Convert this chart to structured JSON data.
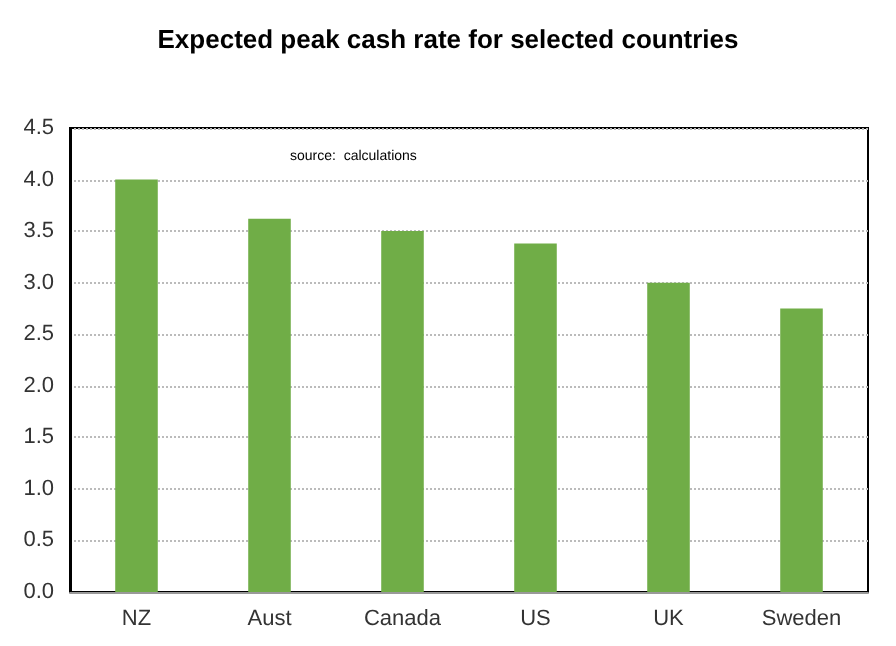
{
  "chart_data": {
    "type": "bar",
    "title": "Expected peak cash rate for selected countries",
    "categories": [
      "NZ",
      "Aust",
      "Canada",
      "US",
      "UK",
      "Sweden"
    ],
    "values": [
      4.0,
      3.62,
      3.5,
      3.38,
      3.0,
      2.75
    ],
    "color": "#70ad47",
    "ylim": [
      0,
      4.5
    ],
    "yticks": [
      {
        "value": 0,
        "label": "0.0"
      },
      0.5,
      {
        "value": 1,
        "label": "1.0"
      },
      1.5,
      {
        "value": 2,
        "label": "2.0"
      },
      2.5,
      {
        "value": 3,
        "label": "3.0"
      },
      3.5,
      {
        "value": 4,
        "label": "4.0"
      },
      4.5
    ],
    "grid": "y",
    "annotations": [
      "source:  calculations"
    ]
  }
}
